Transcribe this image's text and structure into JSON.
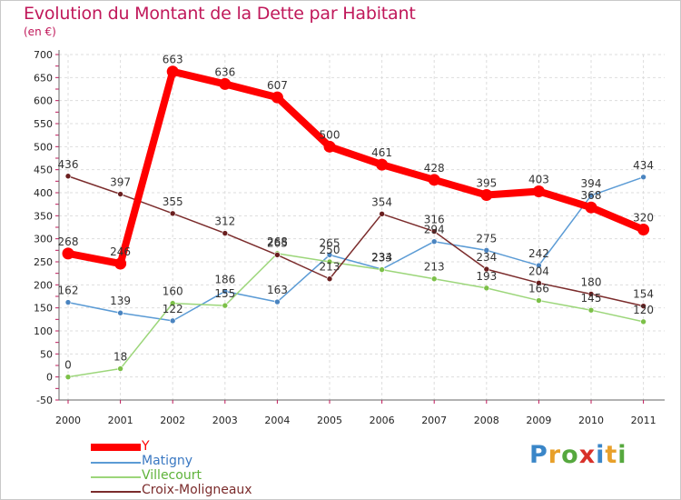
{
  "header": {
    "title": "Evolution du Montant de la Dette par Habitant",
    "unit": "(en €)"
  },
  "brand": {
    "letters": [
      "P",
      "r",
      "o",
      "x",
      "i",
      "t",
      "i"
    ],
    "colors": [
      "#3a86c8",
      "#e8a02a",
      "#56a83e",
      "#d8312a",
      "#3a86c8",
      "#e8a02a",
      "#56a83e"
    ]
  },
  "colors": {
    "title": "#c0185a",
    "grid": "#dddddd",
    "axis": "#666666",
    "tick_mark": "#c0185a"
  },
  "chart_data": {
    "type": "line",
    "title": "Evolution du Montant de la Dette par Habitant",
    "ylabel": "(en €)",
    "xlabel": "",
    "ylim": [
      -50,
      700
    ],
    "yticks": [
      -50,
      0,
      50,
      100,
      150,
      200,
      250,
      300,
      350,
      400,
      450,
      500,
      550,
      600,
      650,
      700
    ],
    "grid": "horizontal dashed",
    "legend": "bottom-left",
    "x": [
      "2000",
      "2001",
      "2002",
      "2003",
      "2004",
      "2005",
      "2006",
      "2007",
      "2008",
      "2009",
      "2010",
      "2011"
    ],
    "series": [
      {
        "name": "Matigny",
        "color": "#5b9bd5",
        "marker": "#4a84c0",
        "values": [
          162,
          139,
          122,
          186,
          163,
          265,
          234,
          294,
          275,
          242,
          394,
          434
        ],
        "labels": [
          "162",
          "139",
          "122",
          "186",
          "163",
          "265",
          "234",
          "294",
          "275",
          "242",
          "394",
          "434"
        ]
      },
      {
        "name": "Villecourt",
        "color": "#9cd67a",
        "marker": "#7cc048",
        "values": [
          0,
          18,
          160,
          155,
          268,
          250,
          233,
          213,
          193,
          166,
          145,
          120
        ],
        "labels": [
          "0",
          "18",
          "160",
          "155",
          "268",
          "250",
          "233",
          "213",
          "193",
          "166",
          "145",
          "120"
        ]
      },
      {
        "name": "Croix-Moligneaux",
        "color": "#7b2c2c",
        "marker": "#6a1f1f",
        "values": [
          436,
          397,
          355,
          312,
          265,
          213,
          354,
          316,
          234,
          204,
          180,
          154
        ],
        "labels": [
          "436",
          "397",
          "355",
          "312",
          "265",
          "213",
          "354",
          "316",
          "234",
          "204",
          "180",
          "154"
        ]
      },
      {
        "name": "Y",
        "color": "#ff0000",
        "marker": "#ff0000",
        "values": [
          268,
          246,
          663,
          636,
          607,
          500,
          461,
          428,
          395,
          403,
          368,
          320
        ],
        "labels": [
          "268",
          "246",
          "663",
          "636",
          "607",
          "500",
          "461",
          "428",
          "395",
          "403",
          "368",
          "320"
        ]
      }
    ]
  }
}
